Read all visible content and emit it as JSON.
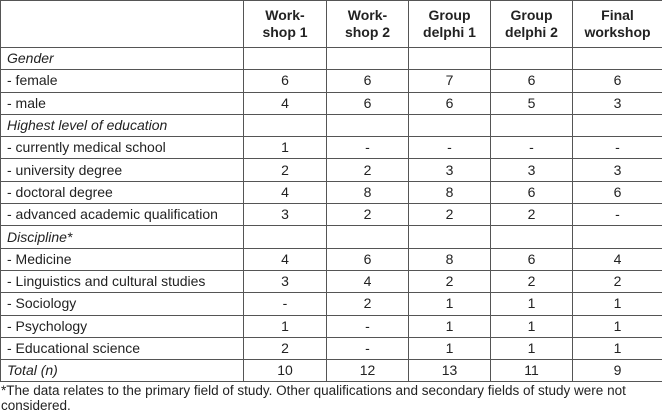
{
  "table": {
    "headers": [
      "",
      "Work-shop 1",
      "Work-shop 2",
      "Group delphi 1",
      "Group delphi 2",
      "Final workshop"
    ],
    "header_lines": [
      [
        "",
        ""
      ],
      [
        "Work-",
        "shop 1"
      ],
      [
        "Work-",
        "shop 2"
      ],
      [
        "Group",
        "delphi 1"
      ],
      [
        "Group",
        "delphi 2"
      ],
      [
        "Final",
        "workshop"
      ]
    ],
    "rows": [
      {
        "label": "Gender",
        "section": true,
        "values": [
          "",
          "",
          "",
          "",
          ""
        ]
      },
      {
        "label": "- female",
        "values": [
          "6",
          "6",
          "7",
          "6",
          "6"
        ]
      },
      {
        "label": "- male",
        "values": [
          "4",
          "6",
          "6",
          "5",
          "3"
        ]
      },
      {
        "label": "Highest level of education",
        "section": true,
        "values": [
          "",
          "",
          "",
          "",
          ""
        ]
      },
      {
        "label": "- currently medical school",
        "values": [
          "1",
          "-",
          "-",
          "-",
          "-"
        ]
      },
      {
        "label": "- university degree",
        "values": [
          "2",
          "2",
          "3",
          "3",
          "3"
        ]
      },
      {
        "label": "- doctoral degree",
        "values": [
          "4",
          "8",
          "8",
          "6",
          "6"
        ]
      },
      {
        "label": "- advanced academic qualification",
        "values": [
          "3",
          "2",
          "2",
          "2",
          "-"
        ]
      },
      {
        "label": "Discipline*",
        "section": true,
        "values": [
          "",
          "",
          "",
          "",
          ""
        ]
      },
      {
        "label": "- Medicine",
        "values": [
          "4",
          "6",
          "8",
          "6",
          "4"
        ]
      },
      {
        "label": "- Linguistics and cultural studies",
        "values": [
          "3",
          "4",
          "2",
          "2",
          "2"
        ]
      },
      {
        "label": "- Sociology",
        "values": [
          "-",
          "2",
          "1",
          "1",
          "1"
        ]
      },
      {
        "label": "- Psychology",
        "values": [
          "1",
          "-",
          "1",
          "1",
          "1"
        ]
      },
      {
        "label": "- Educational science",
        "values": [
          "2",
          "-",
          "1",
          "1",
          "1"
        ]
      },
      {
        "label": "Total (n)",
        "section": true,
        "values": [
          "10",
          "12",
          "13",
          "11",
          "9"
        ]
      }
    ]
  },
  "footnote": "*The data relates to the primary field of study. Other qualifications and secondary fields of study were not considered."
}
